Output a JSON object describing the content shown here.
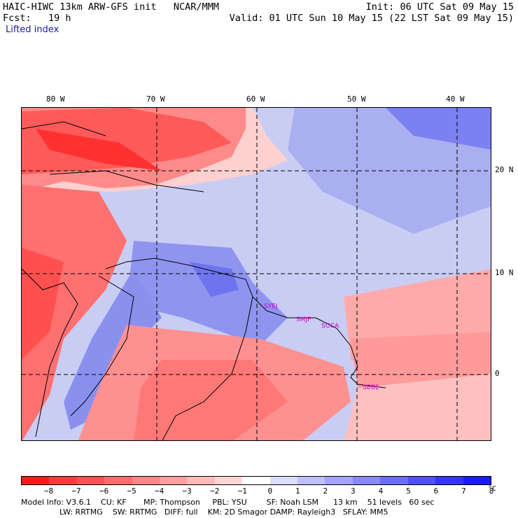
{
  "header": {
    "line1_left": "HAIC-HIWC 13km ARW-GFS init   NCAR/MMM",
    "line1_right": "Init: 06 UTC Sat 09 May 15",
    "line2_left": "Fcst:   19 h",
    "line2_right": "Valid: 01 UTC Sun 10 May 15 (22 LST Sat 09 May 15)",
    "field_name": "Lifted index"
  },
  "map": {
    "lon_labels": [
      "80 W",
      "70 W",
      "60 W",
      "50 W",
      "40 W"
    ],
    "lat_labels": [
      "20 N",
      "10 N",
      "0"
    ],
    "stations": [
      "SYEJ",
      "SMJP",
      "SOCA",
      "SBBE"
    ]
  },
  "colorbar": {
    "colors": [
      "#ff1a1a",
      "#ff3a3a",
      "#ff5252",
      "#ff6c6c",
      "#ff8686",
      "#ffa0a0",
      "#ffbaba",
      "#ffd6d6",
      "#ffffff",
      "#dcdcff",
      "#c0c0ff",
      "#a4a4ff",
      "#8888ff",
      "#6c6cff",
      "#5050ff",
      "#3434ff",
      "#1a1aff"
    ],
    "ticks": [
      "−8",
      "−7",
      "−6",
      "−5",
      "−4",
      "−3",
      "−2",
      "−1",
      "0",
      "1",
      "2",
      "3",
      "4",
      "5",
      "6",
      "7",
      "8"
    ],
    "unit": "°C"
  },
  "footer": {
    "line1": "Model Info: V3.6.1    CU: KF       MP: Thompson     PBL: YSU        SF: Noah LSM      13 km    51 levels   60 sec",
    "line2": "LW: RRTMG    SW: RRTMG   DIFF: full    KM: 2D Smagor DAMP: Rayleigh3   SFLAY: MM5"
  }
}
